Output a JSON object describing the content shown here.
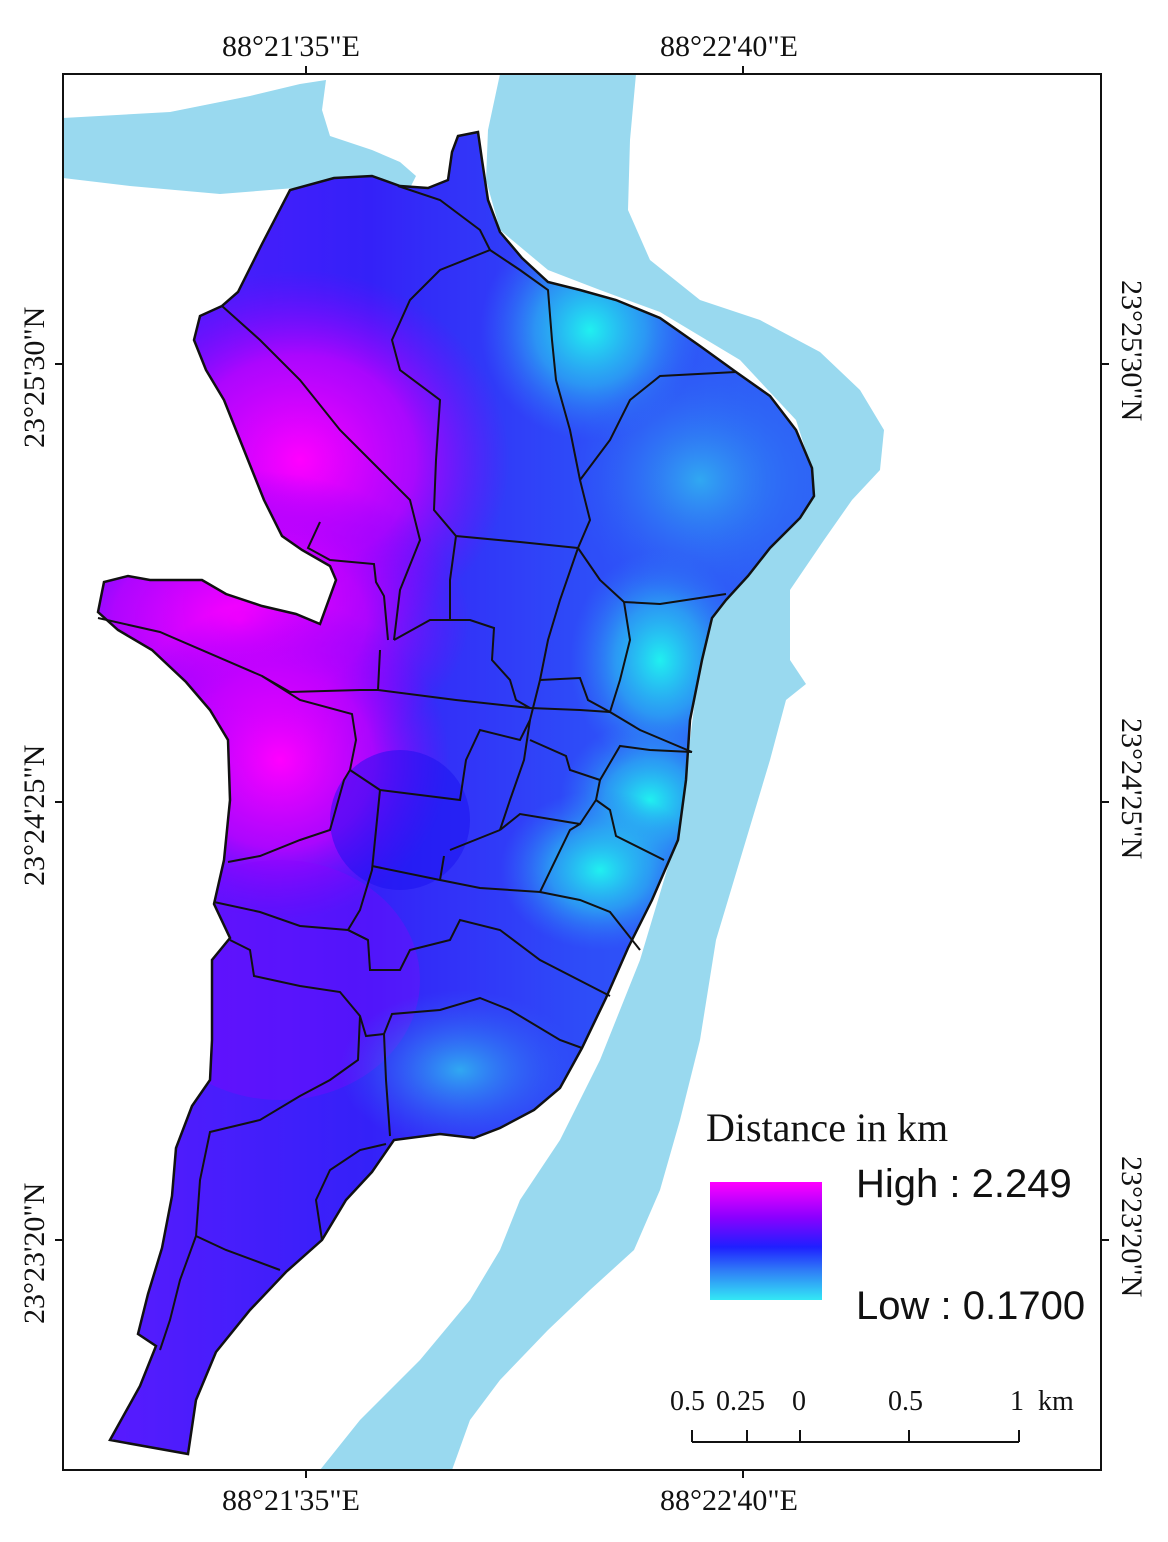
{
  "map": {
    "top_axis": [
      "88°21'35\"E",
      "88°22'40\"E"
    ],
    "bottom_axis": [
      "88°21'35\"E",
      "88°22'40\"E"
    ],
    "left_axis": [
      "23°25'30\"N",
      "23°24'25\"N",
      "23°23'20\"N"
    ],
    "right_axis": [
      "23°25'30\"N",
      "23°24'25\"N",
      "23°23'20\"N"
    ]
  },
  "legend": {
    "title": "Distance in km",
    "high_label": "High : 2.249",
    "low_label": "Low : 0.1700",
    "high_color": "#ff00ff",
    "mid_color": "#1f1fff",
    "low_color": "#33e8f5"
  },
  "scale_bar": {
    "labels": [
      "0.5",
      "0.25",
      "0",
      "0.5",
      "1"
    ],
    "unit": "km"
  },
  "colors": {
    "river": "#99d9ef",
    "boundary": "#111111"
  }
}
